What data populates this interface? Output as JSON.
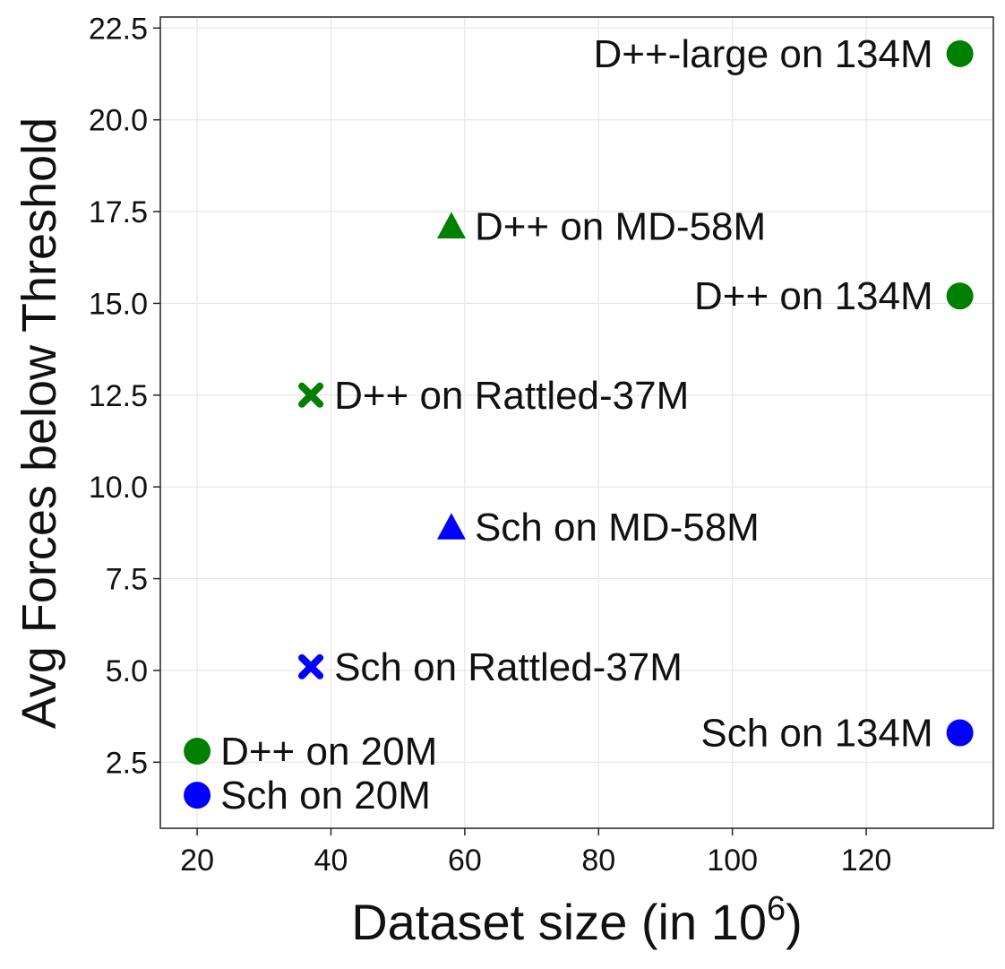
{
  "chart_data": {
    "type": "scatter",
    "title": "",
    "xlabel": "Dataset size (in 10",
    "xlabel_exponent": "6",
    "xlabel_close": ")",
    "ylabel": "Avg Forces below Threshold",
    "xlim": [
      14.5,
      139
    ],
    "ylim": [
      0.7,
      22.8
    ],
    "grid": true,
    "xticks": [
      20,
      40,
      60,
      80,
      100,
      120
    ],
    "xtick_labels": [
      "20",
      "40",
      "60",
      "80",
      "100",
      "120"
    ],
    "yticks": [
      2.5,
      5.0,
      7.5,
      10.0,
      12.5,
      15.0,
      17.5,
      20.0,
      22.5
    ],
    "ytick_labels": [
      "2.5",
      "5.0",
      "7.5",
      "10.0",
      "12.5",
      "15.0",
      "17.5",
      "20.0",
      "22.5"
    ],
    "colors": {
      "dimenet": "#008000",
      "schnet": "#0000ff"
    },
    "points": [
      {
        "label": "D++-large on 134M",
        "x": 134,
        "y": 21.8,
        "marker": "circle",
        "color": "#008000",
        "label_side": "left"
      },
      {
        "label": "D++ on MD-58M",
        "x": 58,
        "y": 17.1,
        "marker": "triangle",
        "color": "#008000",
        "label_side": "right"
      },
      {
        "label": "D++ on 134M",
        "x": 134,
        "y": 15.2,
        "marker": "circle",
        "color": "#008000",
        "label_side": "left"
      },
      {
        "label": "D++ on Rattled-37M",
        "x": 37,
        "y": 12.5,
        "marker": "x",
        "color": "#008000",
        "label_side": "right"
      },
      {
        "label": "Sch on MD-58M",
        "x": 58,
        "y": 8.9,
        "marker": "triangle",
        "color": "#0000ff",
        "label_side": "right"
      },
      {
        "label": "Sch on Rattled-37M",
        "x": 37,
        "y": 5.1,
        "marker": "x",
        "color": "#0000ff",
        "label_side": "right"
      },
      {
        "label": "Sch on 134M",
        "x": 134,
        "y": 3.3,
        "marker": "circle",
        "color": "#0000ff",
        "label_side": "left"
      },
      {
        "label": "D++ on 20M",
        "x": 20,
        "y": 2.8,
        "marker": "circle",
        "color": "#008000",
        "label_side": "right"
      },
      {
        "label": "Sch on 20M",
        "x": 20,
        "y": 1.6,
        "marker": "circle",
        "color": "#0000ff",
        "label_side": "right"
      }
    ]
  }
}
